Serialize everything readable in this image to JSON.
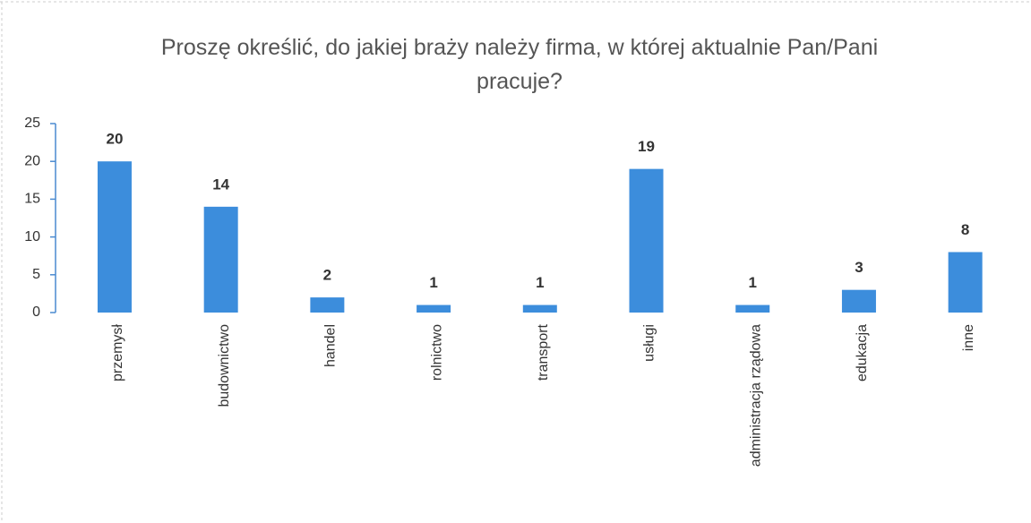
{
  "chart_data": {
    "type": "bar",
    "title": "Proszę określić, do jakiej braży należy firma, w której aktualnie Pan/Pani pracuje?",
    "categories": [
      "przemysł",
      "budownictwo",
      "handel",
      "rolnictwo",
      "transport",
      "usługi",
      "administracja rządowa",
      "edukacja",
      "inne"
    ],
    "values": [
      20,
      14,
      2,
      1,
      1,
      19,
      1,
      3,
      8
    ],
    "color": "#3c8ddc",
    "ylim": [
      0,
      25
    ],
    "yticks": [
      0,
      5,
      10,
      15,
      20,
      25
    ],
    "grid": false
  }
}
